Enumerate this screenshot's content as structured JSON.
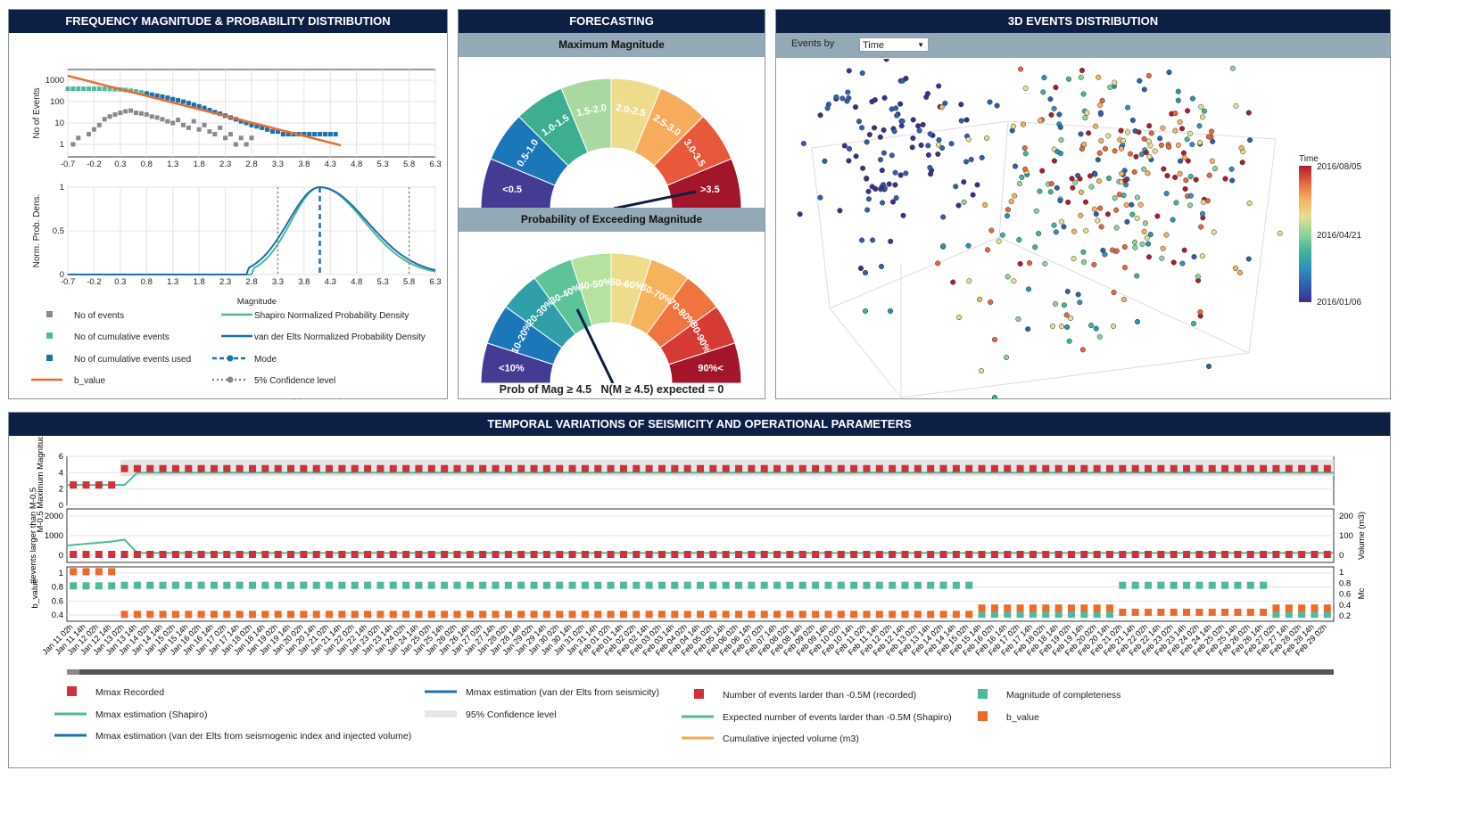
{
  "panels": {
    "freq": {
      "title": "FREQUENCY MAGNITUDE & PROBABILITY DISTRIBUTION"
    },
    "forecast": {
      "title": "FORECASTING",
      "max_mag_title": "Maximum Magnitude",
      "prob_title": "Probability of Exceeding Magnitude",
      "prob_caption": "Prob of Mag ≥ 4.5   N(M ≥ 4.5) expected = 0"
    },
    "events3d": {
      "title": "3D EVENTS DISTRIBUTION",
      "events_by_label": "Events by",
      "events_by_value": "Time",
      "colorbar_title": "Time",
      "colorbar_ticks": [
        "2016/08/05",
        "2016/04/21",
        "2016/01/06"
      ]
    },
    "temporal": {
      "title": "TEMPORAL VARIATIONS OF SEISMICITY AND OPERATIONAL PARAMETERS"
    }
  },
  "colors": {
    "header": "#0d1f45",
    "subheader": "#93aab6",
    "red": "#d0303a",
    "teal": "#4fb99a",
    "orange": "#ee6a2b",
    "blue": "#1b71ad",
    "grey": "#8a8a8a"
  },
  "chart_data": [
    {
      "type": "scatter",
      "id": "frequency-magnitude",
      "ylabel": "No of Events",
      "ylog": true,
      "yticks": [
        "1",
        "10",
        "100",
        "1000"
      ],
      "xticks": [
        "-0.7",
        "-0.2",
        "0.3",
        "0.8",
        "1.3",
        "1.8",
        "2.3",
        "2.8",
        "3.3",
        "3.8",
        "4.3",
        "4.8",
        "5.3",
        "5.8",
        "6.3"
      ],
      "xlim": [
        -0.7,
        6.3
      ],
      "series": [
        {
          "name": "No of events",
          "color": "#8a8a8a",
          "x": [
            -0.6,
            -0.5,
            -0.3,
            -0.2,
            -0.1,
            0.0,
            0.1,
            0.2,
            0.3,
            0.4,
            0.5,
            0.6,
            0.7,
            0.8,
            0.9,
            1.0,
            1.1,
            1.2,
            1.3,
            1.4,
            1.5,
            1.6,
            1.7,
            1.8,
            1.9,
            2.0,
            2.1,
            2.2,
            2.3,
            2.4,
            2.5,
            2.6,
            2.7,
            2.8
          ],
          "y": [
            1,
            2,
            3,
            5,
            8,
            15,
            20,
            25,
            30,
            35,
            38,
            30,
            28,
            25,
            20,
            18,
            15,
            12,
            10,
            14,
            8,
            6,
            12,
            5,
            8,
            4,
            3,
            6,
            2,
            3,
            1,
            2,
            1,
            2
          ]
        },
        {
          "name": "No of cumulative events",
          "color": "#4fb99a",
          "x": [
            -0.7,
            -0.6,
            -0.5,
            -0.4,
            -0.3,
            -0.2,
            -0.1,
            0.0,
            0.1,
            0.2,
            0.3,
            0.4,
            0.5,
            0.6,
            0.7,
            0.8,
            0.9,
            1.0,
            1.1,
            1.2,
            1.3,
            1.4,
            1.5,
            1.6,
            1.7,
            1.8,
            1.9,
            2.0,
            2.1,
            2.2,
            2.3,
            2.4,
            2.5,
            2.6,
            2.7,
            2.8,
            2.9,
            3.0,
            3.1,
            3.2,
            3.3,
            3.4,
            3.5,
            3.6,
            3.7,
            3.8,
            3.9,
            4.0,
            4.1,
            4.2,
            4.3
          ],
          "y": [
            400,
            400,
            400,
            400,
            400,
            399,
            398,
            395,
            390,
            380,
            370,
            350,
            320,
            300,
            270,
            240,
            210,
            190,
            170,
            150,
            130,
            115,
            100,
            85,
            70,
            60,
            50,
            40,
            32,
            27,
            22,
            18,
            15,
            12,
            10,
            8,
            7,
            6,
            5,
            4,
            4,
            3,
            3,
            3,
            3,
            3,
            3,
            3,
            3,
            3,
            3
          ]
        },
        {
          "name": "No of cumulative events used",
          "color": "#1b71ad",
          "x": [
            0.8,
            0.9,
            1.0,
            1.1,
            1.2,
            1.3,
            1.4,
            1.5,
            1.6,
            1.7,
            1.8,
            1.9,
            2.0,
            2.1,
            2.2,
            2.3,
            2.4,
            2.5,
            2.6,
            2.7,
            2.8,
            2.9,
            3.0,
            3.1,
            3.2,
            3.3,
            3.4,
            3.5,
            3.6,
            3.7,
            3.8,
            3.9,
            4.0,
            4.1,
            4.2,
            4.3,
            4.4
          ],
          "y": [
            240,
            210,
            190,
            170,
            150,
            130,
            115,
            100,
            85,
            70,
            60,
            50,
            40,
            32,
            27,
            22,
            18,
            15,
            12,
            10,
            8,
            7,
            6,
            5,
            4,
            4,
            3,
            3,
            3,
            3,
            3,
            3,
            3,
            3,
            3,
            3,
            3
          ]
        },
        {
          "name": "b_value",
          "color": "#ee6a2b",
          "x": [
            -0.7,
            4.5
          ],
          "y": [
            1600,
            0.9
          ]
        }
      ],
      "xlabel": "Magnitude"
    },
    {
      "type": "line",
      "id": "probability-density",
      "ylabel": "Norm. Prob. Dens.",
      "yticks": [
        "0",
        "0.5",
        "1"
      ],
      "xticks": [
        "-0.7",
        "-0.2",
        "0.3",
        "0.8",
        "1.3",
        "1.8",
        "2.3",
        "2.8",
        "3.3",
        "3.8",
        "4.3",
        "4.8",
        "5.3",
        "5.8",
        "6.3"
      ],
      "xlim": [
        -0.7,
        6.3
      ],
      "mode": 4.1,
      "confidence_5": 3.3,
      "confidence_95": 5.8,
      "series": [
        {
          "name": "Shapiro Normalized Probability Density",
          "color": "#4fb99a"
        },
        {
          "name": "van der Elts Normalized Probability Density",
          "color": "#1b71ad"
        },
        {
          "name": "Mode",
          "color": "#1b71ad"
        },
        {
          "name": "5% Confidence level",
          "color": "#888888"
        },
        {
          "name": "95% Confidence level",
          "color": "#888888"
        }
      ],
      "legend": [
        "No of events",
        "No of cumulative events",
        "No of cumulative events used",
        "b_value",
        "Shapiro Normalized Probability Density",
        "van der Elts Normalized Probability Density",
        "Mode",
        "5% Confidence level",
        "95% Confidence level"
      ]
    },
    {
      "type": "gauge",
      "id": "maximum-magnitude-gauge",
      "categories": [
        "<0.5",
        "0.5-1.0",
        "1.0-1.5",
        "1.5-2.0",
        "2.0-2.5",
        "2.5-3.0",
        "3.0-3.5",
        ">3.5"
      ],
      "colors": [
        "#443b93",
        "#1c77b8",
        "#3eae93",
        "#a9d9a0",
        "#ecdc8c",
        "#f6ac5c",
        "#e8583a",
        "#a3152b"
      ],
      "needle_value": 0.94
    },
    {
      "type": "gauge",
      "id": "probability-gauge",
      "categories": [
        "<10%",
        "10-20%",
        "20-30%",
        "30-40%",
        "40-50%",
        "50-60%",
        "60-70%",
        "70-80%",
        "80-90%",
        "90%<"
      ],
      "colors": [
        "#443b93",
        "#1c77b8",
        "#2f9fa9",
        "#5fc39a",
        "#b6e2a0",
        "#ecdc8c",
        "#f7b25c",
        "#ef7440",
        "#d63a34",
        "#a3152b"
      ],
      "needle_value": 0.35
    },
    {
      "type": "scatter",
      "id": "3d-events",
      "colorbar": [
        "2016/08/05",
        "2016/04/21",
        "2016/01/06"
      ]
    },
    {
      "type": "line",
      "id": "temporal-variations",
      "categories": [
        "Jan 11 02h",
        "Jan 11 14h",
        "Jan 12 02h",
        "Jan 12 14h",
        "Jan 13 02h",
        "Jan 13 14h",
        "Jan 14 02h",
        "Jan 14 14h",
        "Jan 15 02h",
        "Jan 15 14h",
        "Jan 16 02h",
        "Jan 16 14h",
        "Jan 17 02h",
        "Jan 17 14h",
        "Jan 18 02h",
        "Jan 18 14h",
        "Jan 19 02h",
        "Jan 19 14h",
        "Jan 20 02h",
        "Jan 20 14h",
        "Jan 21 02h",
        "Jan 21 14h",
        "Jan 22 02h",
        "Jan 22 14h",
        "Jan 23 02h",
        "Jan 23 14h",
        "Jan 24 02h",
        "Jan 24 14h",
        "Jan 25 02h",
        "Jan 25 14h",
        "Jan 26 02h",
        "Jan 26 14h",
        "Jan 27 02h",
        "Jan 27 14h",
        "Jan 28 02h",
        "Jan 28 14h",
        "Jan 29 02h",
        "Jan 29 14h",
        "Jan 30 02h",
        "Jan 30 14h",
        "Jan 31 02h",
        "Jan 31 14h",
        "Feb 01 02h",
        "Feb 01 14h",
        "Feb 02 02h",
        "Feb 02 14h",
        "Feb 03 02h",
        "Feb 03 14h",
        "Feb 04 02h",
        "Feb 04 14h",
        "Feb 05 02h",
        "Feb 05 14h",
        "Feb 06 02h",
        "Feb 06 14h",
        "Feb 07 02h",
        "Feb 07 14h",
        "Feb 08 02h",
        "Feb 08 14h",
        "Feb 09 02h",
        "Feb 09 14h",
        "Feb 10 02h",
        "Feb 10 14h",
        "Feb 11 02h",
        "Feb 11 14h",
        "Feb 12 02h",
        "Feb 12 14h",
        "Feb 13 02h",
        "Feb 13 14h",
        "Feb 14 02h",
        "Feb 14 14h",
        "Feb 15 02h",
        "Feb 15 14h",
        "Feb 16 02h",
        "Feb 16 14h",
        "Feb 17 02h",
        "Feb 17 14h",
        "Feb 18 02h",
        "Feb 18 14h",
        "Feb 19 02h",
        "Feb 19 14h",
        "Feb 20 02h",
        "Feb 20 14h",
        "Feb 21 02h",
        "Feb 21 14h",
        "Feb 22 02h",
        "Feb 22 14h",
        "Feb 23 02h",
        "Feb 23 14h",
        "Feb 24 02h",
        "Feb 24 14h",
        "Feb 25 02h",
        "Feb 25 14h",
        "Feb 26 02h",
        "Feb 26 14h",
        "Feb 27 02h",
        "Feb 27 14h",
        "Feb 28 02h",
        "Feb 28 14h",
        "Feb 29 02h"
      ],
      "subplots": [
        {
          "ylabel": "M-0.5 Maximum Magnitude",
          "yticks": [
            "0",
            "2",
            "4",
            "6"
          ],
          "mmax_recorded_early": 2.5,
          "mmax_recorded": 4.5
        },
        {
          "ylabel": "#events larger than M-0.5",
          "yticks": [
            "0",
            "1000",
            "2000"
          ],
          "y2label": "Volume (m3)",
          "y2ticks": [
            "0",
            "100",
            "200"
          ],
          "events_recorded": 0
        },
        {
          "ylabel": "b_value",
          "yticks": [
            "0.4",
            "0.6",
            "0.8",
            "1"
          ],
          "y2label": "Mc",
          "y2ticks": [
            "0.2",
            "0.4",
            "0.6",
            "0.8",
            "1"
          ],
          "mc_early": 0.75,
          "b_early": 0.9
        }
      ],
      "legend": [
        "Mmax Recorded",
        "Mmax estimation (Shapiro)",
        "Mmax estimation (van der Elts from seismogenic index and injected volume)",
        "Mmax estimation (van der Elts from seismicity)",
        "95% Confidence level",
        "Number of events larder than -0.5M (recorded)",
        "Expected number of events larder than -0.5M (Shapiro)",
        "Cumulative injected volume (m3)",
        "Magnitude of completeness",
        "b_value"
      ]
    }
  ]
}
